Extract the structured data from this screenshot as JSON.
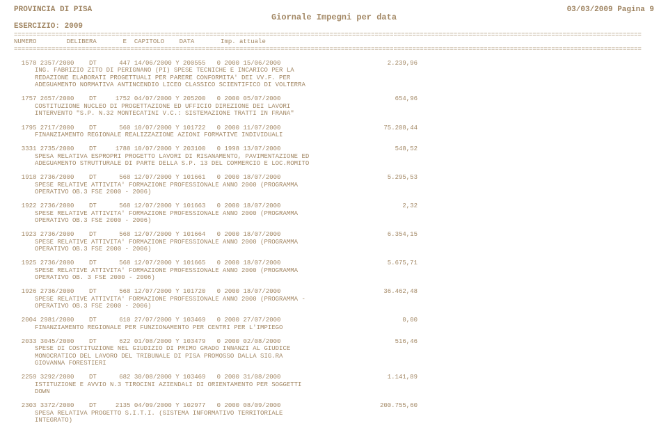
{
  "header": {
    "left": "PROVINCIA DI PISA",
    "right": "03/03/2009 Pagina   9",
    "title": "Giornale Impegni per data",
    "esercizio": "ESERCIZIO: 2009",
    "columns": "NUMERO        DELIBERA       E  CAPITOLO    DATA       Imp. attuale"
  },
  "entries": [
    {
      "head": "  1578 2357/2000    DT      447 14/06/2000 Y 200555   0 2000 15/06/2000",
      "amount": "2.239,96",
      "desc": "ING. FABRIZIO ZITO DI PERIGNANO (PI) SPESE TECNICHE E INCARICO PER LA REDAZIONE ELABORATI PROGETTUALI PER PARERE CONFORMITA' DEI VV.F. PER ADEGUAMENTO NORMATIVA ANTINCENDIO LICEO CLASSICO SCIENTIFICO DI VOLTERRA"
    },
    {
      "head": "  1757 2657/2000    DT     1752 04/07/2000 Y 205200   0 2000 05/07/2000",
      "amount": "654,96",
      "desc": "COSTITUZIONE NUCLEO DI PROGETTAZIONE ED UFFICIO DIREZIONE DEI LAVORI INTERVENTO \"S.P. N.32 MONTECATINI V.C.: SISTEMAZIONE TRATTI IN FRANA\""
    },
    {
      "head": "  1795 2717/2000    DT      560 10/07/2000 Y 101722   0 2000 11/07/2000",
      "amount": "75.208,44",
      "desc": "FINANZIAMENTO REGIONALE REALIZZAZIONE AZIONI FORMATIVE INDIVIDUALI"
    },
    {
      "head": "  3331 2735/2000    DT     1788 10/07/2000 Y 203100   0 1998 13/07/2000",
      "amount": "548,52",
      "desc": "SPESA RELATIVA ESPROPRI PROGETTO LAVORI DI RISANAMENTO, PAVIMENTAZIONE ED ADEGUAMENTO STRUTTURALE DI PARTE DELLA S.P. 13 DEL COMMERCIO E LOC.ROMITO"
    },
    {
      "head": "  1918 2736/2000    DT      568 12/07/2000 Y 101661   0 2000 18/07/2000",
      "amount": "5.295,53",
      "desc": "SPESE RELATIVE ATTIVITA' FORMAZIONE PROFESSIONALE ANNO 2000 (PROGRAMMA OPERATIVO OB.3 FSE 2000 - 2006)"
    },
    {
      "head": "  1922 2736/2000    DT      568 12/07/2000 Y 101663   0 2000 18/07/2000",
      "amount": "2,32",
      "desc": "SPESE RELATIVE ATTIVITA' FORMAZIONE PROFESSIONALE ANNO 2000 (PROGRAMMA OPERATIVO OB.3 FSE 2000 - 2006)"
    },
    {
      "head": "  1923 2736/2000    DT      568 12/07/2000 Y 101664   0 2000 18/07/2000",
      "amount": "6.354,15",
      "desc": "SPESE RELATIVE ATTIVITA' FORMAZIONE PROFESSIONALE ANNO 2000 (PROGRAMMA OPERATIVO OB.3 FSE 2000 - 2006)"
    },
    {
      "head": "  1925 2736/2000    DT      568 12/07/2000 Y 101665   0 2000 18/07/2000",
      "amount": "5.675,71",
      "desc": "SPESE RELATIVE ATTIVITA' FORMAZIONE PROFESSIONALE ANNO 2000 (PROGRAMMA OPERATIVO OB. 3 FSE 2000 - 2006)"
    },
    {
      "head": "  1926 2736/2000    DT      568 12/07/2000 Y 101720   0 2000 18/07/2000",
      "amount": "36.462,48",
      "desc": "SPESE RELATIVE ATTIVITA' FORMAZIONE PROFESSIONALE ANNO 2000 (PROGRAMMA - OPERATIVO OB.3 FSE 2000 - 2006)"
    },
    {
      "head": "  2004 2981/2000    DT      610 27/07/2000 Y 103469   0 2000 27/07/2000",
      "amount": "0,00",
      "desc": "FINANZIAMENTO REGIONALE PER FUNZIONAMENTO PER CENTRI PER L'IMPIEGO"
    },
    {
      "head": "  2033 3045/2000    DT      622 01/08/2000 Y 103479   0 2000 02/08/2000",
      "amount": "516,46",
      "desc": "SPESE DI COSTITUZIONE NEL GIUDIZIO DI PRIMO GRADO INNANZI AL GIUDICE MONOCRATICO DEL LAVORO DEL TRIBUNALE DI PISA PROMOSSO DALLA SIG.RA GIOVANNA FORESTIERI"
    },
    {
      "head": "  2259 3292/2000    DT      682 30/08/2000 Y 103469   0 2000 31/08/2000",
      "amount": "1.141,89",
      "desc": "ISTITUZIONE E AVVIO N.3 TIROCINI AZIENDALI DI ORIENTAMENTO PER SOGGETTI DOWN"
    },
    {
      "head": "  2303 3372/2000    DT     2135 04/09/2000 Y 102977   0 2000 08/09/2000",
      "amount": "200.755,60",
      "desc": "SPESA RELATIVA PROGETTO S.I.T.I. (SISTEMA INFORMATIVO TERRITORIALE INTEGRATO)"
    }
  ]
}
